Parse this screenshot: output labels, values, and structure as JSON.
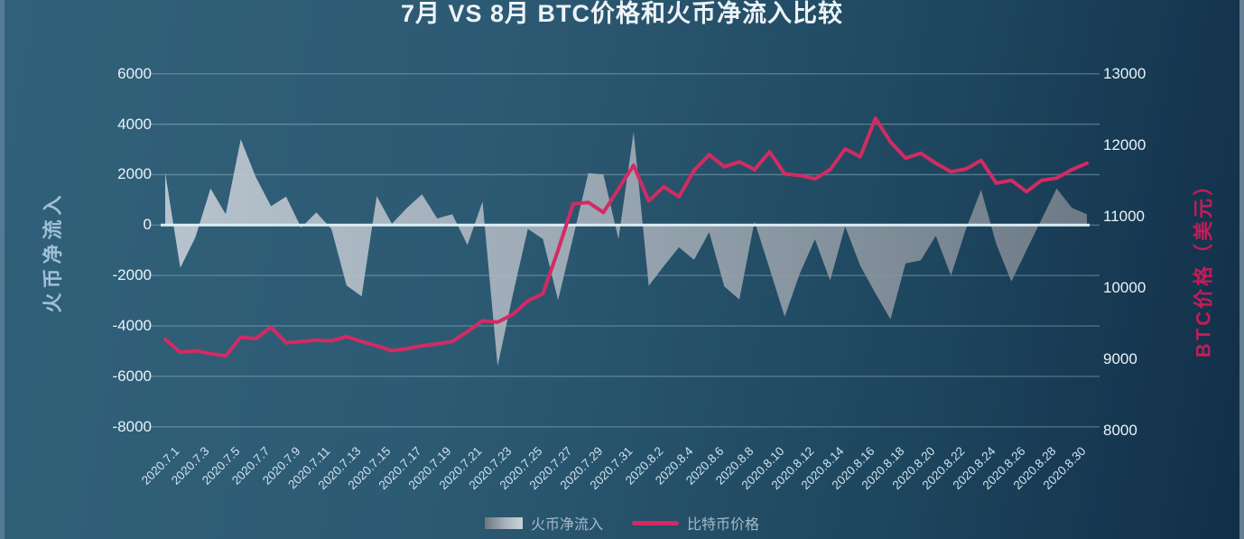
{
  "title": "7月 VS 8月 BTC价格和火币净流入比较",
  "colors": {
    "background_left": "#2d5a73",
    "background_right": "#122e48",
    "price_line": "#d22b63",
    "area_fill_light": "#c1cbd4",
    "area_fill_dark": "#76818c",
    "gridline": "#aecbdc",
    "zero_line": "#dceef6",
    "left_axis_text": "#eaf3f9",
    "left_axis_title": "#a0c0d6",
    "right_axis_title": "#c21d58",
    "x_axis_text": "#cfe3ef",
    "legend_text": "#a3bac9"
  },
  "chart_data": {
    "type": "combo-area-line",
    "title": "7月 VS 8月 BTC价格和火币净流入比较",
    "x": [
      "2020.7.1",
      "2020.7.2",
      "2020.7.3",
      "2020.7.4",
      "2020.7.5",
      "2020.7.6",
      "2020.7.7",
      "2020.7.8",
      "2020.7.9",
      "2020.7.10",
      "2020.7.11",
      "2020.7.12",
      "2020.7.13",
      "2020.7.14",
      "2020.7.15",
      "2020.7.16",
      "2020.7.17",
      "2020.7.18",
      "2020.7.19",
      "2020.7.20",
      "2020.7.21",
      "2020.7.22",
      "2020.7.23",
      "2020.7.24",
      "2020.7.25",
      "2020.7.26",
      "2020.7.27",
      "2020.7.28",
      "2020.7.29",
      "2020.7.30",
      "2020.7.31",
      "2020.8.1",
      "2020.8.2",
      "2020.8.3",
      "2020.8.4",
      "2020.8.5",
      "2020.8.6",
      "2020.8.7",
      "2020.8.8",
      "2020.8.9",
      "2020.8.10",
      "2020.8.11",
      "2020.8.12",
      "2020.8.13",
      "2020.8.14",
      "2020.8.15",
      "2020.8.16",
      "2020.8.17",
      "2020.8.18",
      "2020.8.19",
      "2020.8.20",
      "2020.8.21",
      "2020.8.22",
      "2020.8.23",
      "2020.8.24",
      "2020.8.25",
      "2020.8.26",
      "2020.8.27",
      "2020.8.28",
      "2020.8.29",
      "2020.8.30",
      "2020.8.31"
    ],
    "x_tick_labels": [
      "2020.7.1",
      "2020.7.3",
      "2020.7.5",
      "2020.7.7",
      "2020.7.9",
      "2020.7.11",
      "2020.7.13",
      "2020.7.15",
      "2020.7.17",
      "2020.7.19",
      "2020.7.21",
      "2020.7.23",
      "2020.7.25",
      "2020.7.27",
      "2020.7.29",
      "2020.7.31",
      "2020.8.2",
      "2020.8.4",
      "2020.8.6",
      "2020.8.8",
      "2020.8.10",
      "2020.8.12",
      "2020.8.14",
      "2020.8.16",
      "2020.8.18",
      "2020.8.20",
      "2020.8.22",
      "2020.8.24",
      "2020.8.26",
      "2020.8.28",
      "2020.8.30"
    ],
    "series": [
      {
        "name": "火币净流入",
        "type": "area",
        "axis": "left",
        "values": [
          2080,
          -1700,
          -480,
          1450,
          430,
          3400,
          1900,
          750,
          1130,
          -100,
          500,
          -150,
          -2400,
          -2830,
          1150,
          50,
          680,
          1220,
          260,
          430,
          -790,
          930,
          -5600,
          -2770,
          -150,
          -550,
          -2980,
          -480,
          2060,
          2010,
          -560,
          3700,
          -2410,
          -1630,
          -880,
          -1380,
          -280,
          -2430,
          -2950,
          150,
          -1730,
          -3630,
          -1920,
          -560,
          -2200,
          -50,
          -1610,
          -2700,
          -3740,
          -1520,
          -1400,
          -430,
          -2000,
          -150,
          1400,
          -750,
          -2240,
          -1000,
          230,
          1450,
          680,
          430
        ]
      },
      {
        "name": "比特币价格",
        "type": "line",
        "axis": "right",
        "values": [
          9280,
          9100,
          9120,
          9080,
          9050,
          9310,
          9290,
          9450,
          9230,
          9250,
          9270,
          9260,
          9320,
          9250,
          9190,
          9120,
          9150,
          9190,
          9215,
          9250,
          9390,
          9540,
          9520,
          9630,
          9820,
          9920,
          10530,
          11180,
          11200,
          11060,
          11390,
          11720,
          11220,
          11420,
          11280,
          11650,
          11870,
          11700,
          11770,
          11660,
          11910,
          11600,
          11580,
          11530,
          11660,
          11950,
          11840,
          12380,
          12050,
          11820,
          11890,
          11750,
          11630,
          11670,
          11790,
          11470,
          11510,
          11350,
          11510,
          11540,
          11660,
          11750
        ]
      }
    ],
    "left_axis": {
      "label": "火币净流入",
      "min": -8000,
      "max": 6000,
      "ticks": [
        6000,
        4000,
        2000,
        0,
        -2000,
        -4000,
        -6000,
        -8000
      ]
    },
    "right_axis": {
      "label": "BTC价格（美元）",
      "min": 8000,
      "max": 13000,
      "ticks": [
        13000,
        12000,
        11000,
        10000,
        9000,
        8000
      ]
    },
    "legend": [
      "火币净流入",
      "比特币价格"
    ],
    "legend_position": "bottom-center",
    "grid": true
  }
}
